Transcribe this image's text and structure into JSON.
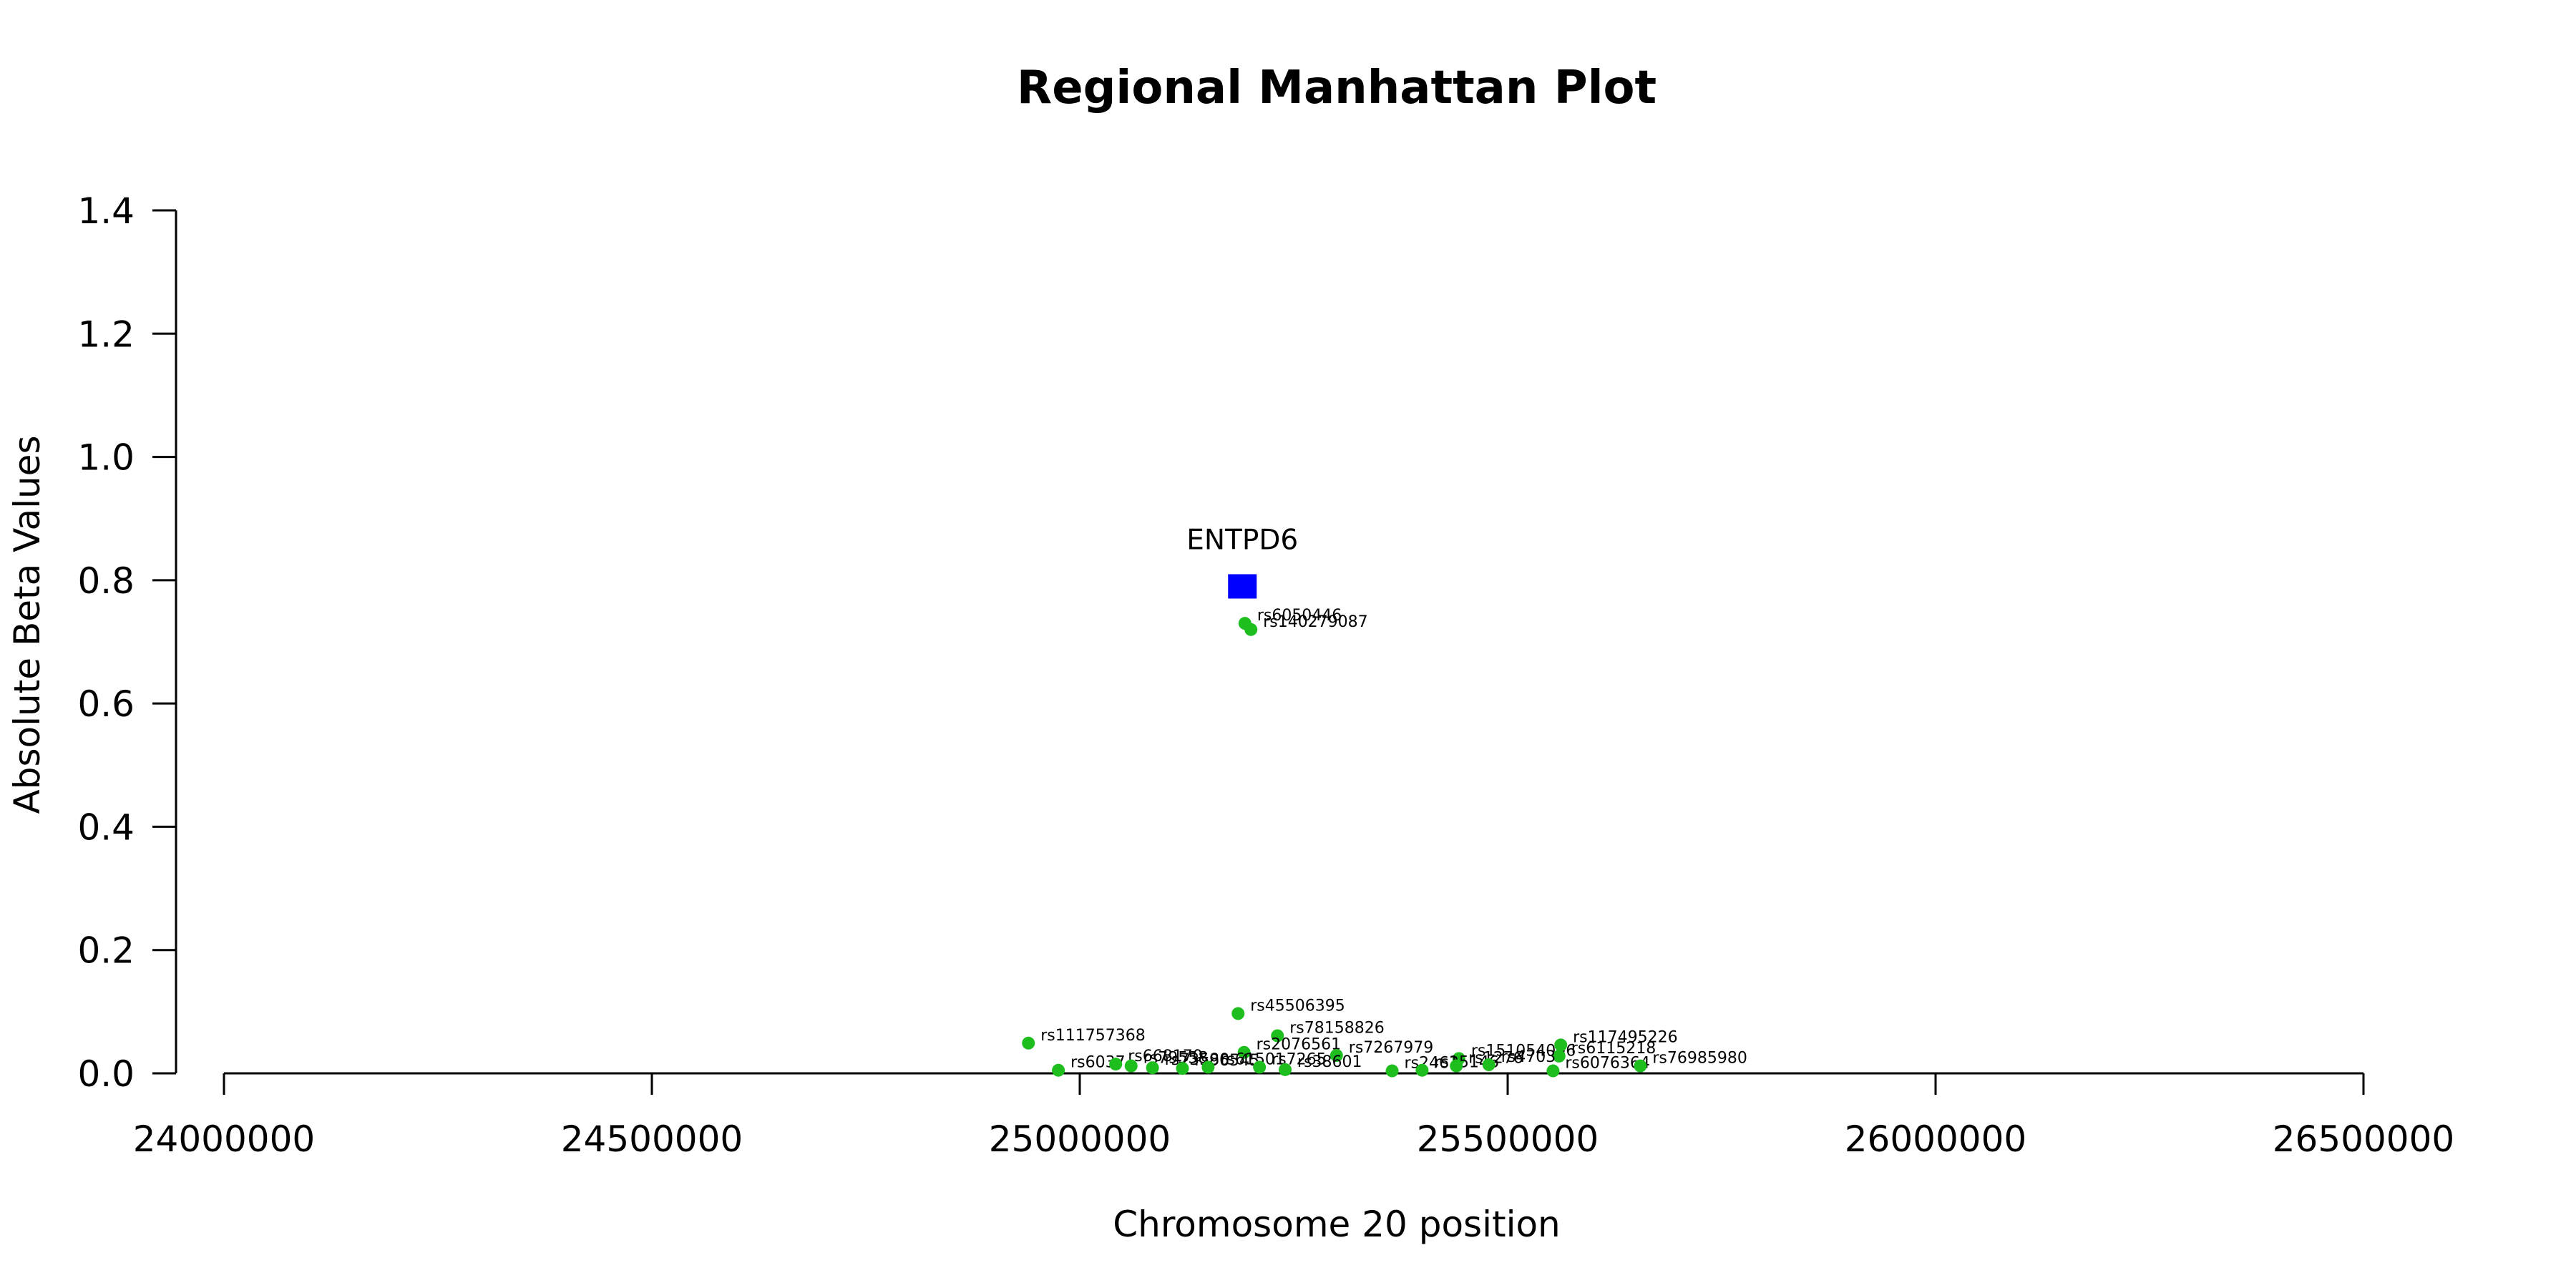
{
  "chart_data": {
    "type": "scatter",
    "title": "Regional Manhattan Plot",
    "xlabel": "Chromosome 20 position",
    "ylabel": "Absolute Beta Values",
    "xlim": [
      24000000,
      26500000
    ],
    "ylim": [
      0,
      1.4
    ],
    "x_ticks": [
      "24000000",
      "24500000",
      "25000000",
      "25500000",
      "26000000",
      "26500000"
    ],
    "y_ticks": [
      "0.0",
      "0.2",
      "0.4",
      "0.6",
      "0.8",
      "1.0",
      "1.2",
      "1.4"
    ],
    "gene": {
      "name": "ENTPD6",
      "x": 25190000,
      "y": 0.79,
      "color": "#0000ff",
      "marker": "square"
    },
    "point_color": "#1ebe1e",
    "series": [
      {
        "points": [
          {
            "label": "rs6050446",
            "x": 25193000,
            "y": 0.73
          },
          {
            "label": "rs140279087",
            "x": 25200000,
            "y": 0.72
          },
          {
            "label": "rs45506395",
            "x": 25185000,
            "y": 0.097
          },
          {
            "label": "rs78158826",
            "x": 25231000,
            "y": 0.061
          },
          {
            "label": "rs111757368",
            "x": 24940000,
            "y": 0.049
          },
          {
            "label": "rs2076561",
            "x": 25192000,
            "y": 0.034
          },
          {
            "label": "rs7267979",
            "x": 25300000,
            "y": 0.029
          },
          {
            "label": "rs151054096",
            "x": 25443000,
            "y": 0.024
          },
          {
            "label": "rs117495226",
            "x": 25562000,
            "y": 0.046
          },
          {
            "label": "rs6115218",
            "x": 25560000,
            "y": 0.028
          },
          {
            "label": "rs6037",
            "x": 24975000,
            "y": 0.005
          },
          {
            "label": "rs668170",
            "x": 25042000,
            "y": 0.015
          },
          {
            "label": "rs79558",
            "x": 25060000,
            "y": 0.012
          },
          {
            "label": "rs73580",
            "x": 25085000,
            "y": 0.009
          },
          {
            "label": "rs96545",
            "x": 25120000,
            "y": 0.008
          },
          {
            "label": "rs61501",
            "x": 25150000,
            "y": 0.01
          },
          {
            "label": "rs7265",
            "x": 25210000,
            "y": 0.01
          },
          {
            "label": "rs38601",
            "x": 25240000,
            "y": 0.006
          },
          {
            "label": "rs2463",
            "x": 25365000,
            "y": 0.004
          },
          {
            "label": "rs15146",
            "x": 25400000,
            "y": 0.005
          },
          {
            "label": "rs1276",
            "x": 25440000,
            "y": 0.012
          },
          {
            "label": "rs4703",
            "x": 25478000,
            "y": 0.014
          },
          {
            "label": "rs6076364",
            "x": 25553000,
            "y": 0.004
          },
          {
            "label": "rs76985980",
            "x": 25655000,
            "y": 0.012
          }
        ]
      }
    ]
  }
}
